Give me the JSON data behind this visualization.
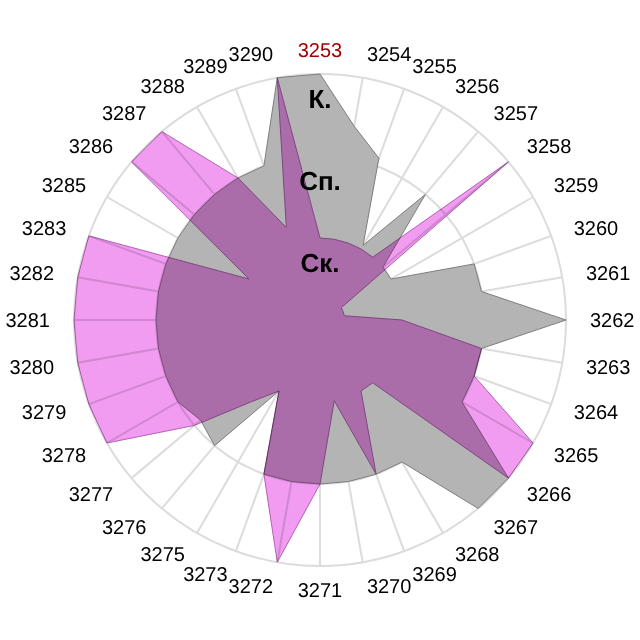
{
  "chart_data": {
    "type": "radar",
    "categories": [
      "3253",
      "3254",
      "3255",
      "3256",
      "3257",
      "3258",
      "3259",
      "3260",
      "3261",
      "3262",
      "3263",
      "3264",
      "3265",
      "3266",
      "3267",
      "3268",
      "3269",
      "3270",
      "3271",
      "3272",
      "3273",
      "3275",
      "3276",
      "3277",
      "3278",
      "3279",
      "3280",
      "3281",
      "3282",
      "3283",
      "3285",
      "3286",
      "3287",
      "3288",
      "3289",
      "3290"
    ],
    "series": [
      {
        "color": "#b4b4b4",
        "values": [
          3,
          2.4,
          2.1,
          1.05,
          2,
          1,
          1,
          2,
          2,
          3,
          2,
          2,
          2,
          3,
          3,
          2,
          2,
          2,
          2,
          2,
          2,
          1,
          2,
          1.9,
          2,
          2,
          2,
          2,
          2,
          2,
          2,
          2,
          2,
          2,
          2,
          3
        ]
      },
      {
        "color": "#ee82ee",
        "values": [
          1,
          1,
          1,
          1,
          1,
          3,
          0.3,
          0.3,
          0.3,
          1,
          2,
          2,
          3,
          3,
          1,
          1,
          2,
          1,
          2,
          3,
          2,
          1,
          1.3,
          2,
          3,
          3,
          3,
          3,
          3,
          3,
          1,
          3,
          3,
          2,
          1.2,
          3
        ]
      }
    ],
    "ylim": [
      0,
      3
    ],
    "yticks": [
      {
        "value": 1,
        "label": "Ск."
      },
      {
        "value": 2,
        "label": "Сп."
      },
      {
        "value": 3,
        "label": "К."
      }
    ],
    "grid": true
  }
}
